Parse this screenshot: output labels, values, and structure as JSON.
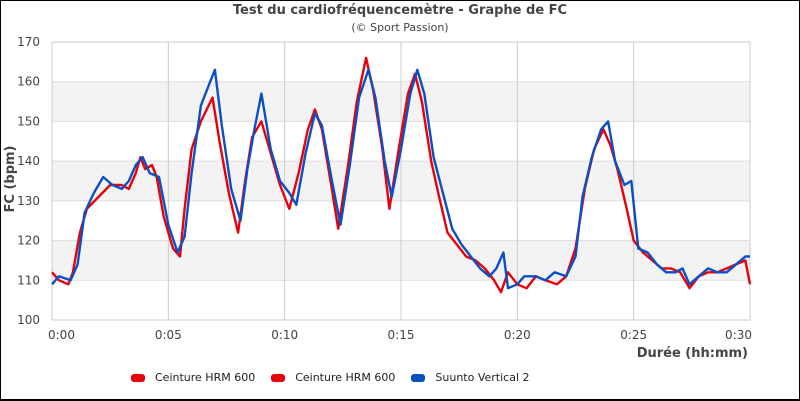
{
  "chart_data": {
    "type": "line",
    "title": "Test du cardiofréquencemètre - Graphe de FC",
    "subtitle": "(© Sport Passion)",
    "xlabel": "Durée (hh:mm)",
    "ylabel": "FC (bpm)",
    "xlim": [
      0,
      30
    ],
    "ylim": [
      100,
      170
    ],
    "x_ticks": [
      0,
      5,
      10,
      15,
      20,
      25,
      30
    ],
    "x_tick_labels": [
      "0:00",
      "0:05",
      "0:10",
      "0:15",
      "0:20",
      "0:25",
      "0:30"
    ],
    "y_ticks": [
      100,
      110,
      120,
      130,
      140,
      150,
      160,
      170
    ],
    "y_tick_labels": [
      "100",
      "110",
      "120",
      "130",
      "140",
      "150",
      "160",
      "170"
    ],
    "grid": true,
    "shaded_bands": [
      [
        110,
        120
      ],
      [
        130,
        140
      ],
      [
        150,
        160
      ]
    ],
    "legend_position": "bottom",
    "series": [
      {
        "name": "Ceinture HRM 600",
        "color": "#e8000b",
        "x": [
          0,
          0.3,
          0.7,
          0.9,
          1.2,
          1.5,
          2.0,
          2.5,
          3.0,
          3.3,
          3.6,
          3.8,
          4.0,
          4.3,
          4.5,
          4.8,
          5.2,
          5.5,
          5.7,
          6.0,
          6.4,
          6.9,
          7.2,
          7.6,
          8.0,
          8.3,
          8.6,
          9.0,
          9.4,
          9.8,
          10.2,
          10.6,
          11.0,
          11.3,
          11.6,
          12.0,
          12.3,
          12.7,
          13.1,
          13.5,
          13.8,
          14.2,
          14.5,
          14.9,
          15.3,
          15.6,
          15.9,
          16.3,
          16.6,
          17.0,
          17.4,
          17.8,
          18.2,
          18.6,
          19.0,
          19.3,
          19.6,
          20.0,
          20.4,
          20.8,
          21.2,
          21.7,
          22.1,
          22.5,
          22.9,
          23.3,
          23.7,
          24.0,
          24.3,
          24.7,
          25.0,
          25.4,
          25.8,
          26.2,
          26.6,
          27.0,
          27.4,
          27.8,
          28.2,
          28.6,
          29.0,
          29.4,
          29.8,
          30.0
        ],
        "values": [
          112,
          110,
          109,
          112,
          122,
          128,
          131,
          134,
          134,
          133,
          137,
          141,
          138,
          139,
          136,
          126,
          118,
          116,
          128,
          143,
          150,
          156,
          145,
          132,
          122,
          135,
          146,
          150,
          142,
          134,
          128,
          137,
          148,
          153,
          148,
          134,
          123,
          138,
          155,
          166,
          158,
          143,
          128,
          143,
          157,
          162,
          155,
          140,
          132,
          122,
          119,
          116,
          115,
          113,
          110,
          107,
          112,
          109,
          108,
          111,
          110,
          109,
          111,
          118,
          133,
          143,
          148,
          144,
          138,
          128,
          120,
          117,
          115,
          113,
          113,
          112,
          108,
          111,
          112,
          112,
          113,
          114,
          115,
          109
        ]
      },
      {
        "name": "Ceinture HRM 600",
        "color": "#e8000b",
        "x": [],
        "values": []
      },
      {
        "name": "Suunto Vertical 2",
        "color": "#0b4fc4",
        "x": [
          0,
          0.3,
          0.8,
          1.1,
          1.4,
          1.8,
          2.2,
          2.6,
          3.0,
          3.3,
          3.6,
          3.9,
          4.2,
          4.6,
          5.0,
          5.4,
          5.7,
          6.0,
          6.4,
          6.8,
          7.0,
          7.3,
          7.7,
          8.1,
          8.4,
          8.7,
          9.0,
          9.4,
          9.8,
          10.2,
          10.5,
          10.9,
          11.3,
          11.6,
          12.0,
          12.4,
          12.8,
          13.2,
          13.6,
          13.9,
          14.3,
          14.6,
          15.0,
          15.4,
          15.7,
          16.0,
          16.4,
          16.8,
          17.2,
          17.6,
          18.0,
          18.4,
          18.8,
          19.1,
          19.4,
          19.6,
          20.0,
          20.3,
          20.8,
          21.2,
          21.6,
          22.1,
          22.5,
          22.8,
          23.2,
          23.6,
          23.9,
          24.2,
          24.6,
          24.9,
          25.2,
          25.6,
          26.0,
          26.4,
          26.8,
          27.1,
          27.4,
          27.8,
          28.2,
          28.6,
          29.0,
          29.4,
          29.8,
          30.0
        ],
        "values": [
          109,
          111,
          110,
          114,
          127,
          132,
          136,
          134,
          133,
          135,
          139,
          141,
          137,
          136,
          124,
          117,
          121,
          137,
          154,
          160,
          163,
          149,
          133,
          125,
          138,
          148,
          157,
          143,
          135,
          132,
          129,
          142,
          152,
          149,
          136,
          124,
          139,
          156,
          163,
          156,
          140,
          131,
          143,
          157,
          163,
          157,
          141,
          132,
          123,
          119,
          116,
          113,
          111,
          113,
          117,
          108,
          109,
          111,
          111,
          110,
          112,
          111,
          116,
          131,
          141,
          148,
          150,
          140,
          134,
          135,
          118,
          117,
          114,
          112,
          112,
          113,
          109,
          111,
          113,
          112,
          112,
          114,
          116,
          116
        ]
      }
    ]
  },
  "legend": {
    "items": [
      {
        "label": "Ceinture HRM 600",
        "color": "#e8000b"
      },
      {
        "label": "Ceinture HRM 600",
        "color": "#e8000b"
      },
      {
        "label": "Suunto Vertical 2",
        "color": "#0b4fc4"
      }
    ]
  }
}
